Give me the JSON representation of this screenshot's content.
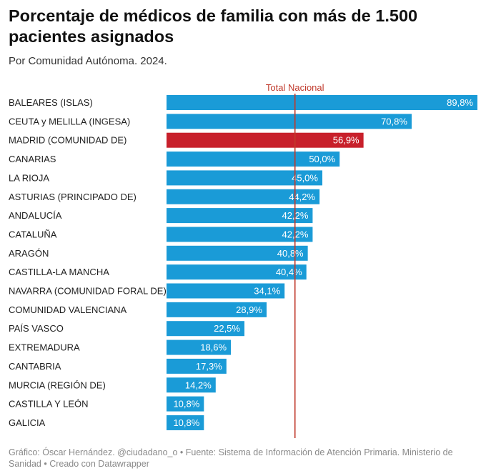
{
  "chart_data": {
    "type": "bar",
    "orientation": "horizontal",
    "title": "Porcentaje de médicos de familia con más de 1.500 pacientes asignados",
    "subtitle": "Por Comunidad Autónoma. 2024.",
    "categories": [
      "BALEARES (ISLAS)",
      "CEUTA y MELILLA (INGESA)",
      "MADRID (COMUNIDAD DE)",
      "CANARIAS",
      "LA RIOJA",
      "ASTURIAS (PRINCIPADO DE)",
      "ANDALUCÍA",
      "CATALUÑA",
      "ARAGÓN",
      "CASTILLA-LA MANCHA",
      "NAVARRA (COMUNIDAD FORAL DE)",
      "COMUNIDAD VALENCIANA",
      "PAÍS VASCO",
      "EXTREMADURA",
      "CANTABRIA",
      "MURCIA (REGIÓN DE)",
      "CASTILLA Y LEÓN",
      "GALICIA"
    ],
    "values": [
      89.8,
      70.8,
      56.9,
      50.0,
      45.0,
      44.2,
      42.2,
      42.2,
      40.8,
      40.4,
      34.1,
      28.9,
      22.5,
      18.6,
      17.3,
      14.2,
      10.8,
      10.8
    ],
    "value_labels": [
      "89,8%",
      "70,8%",
      "56,9%",
      "50,0%",
      "45,0%",
      "44,2%",
      "42,2%",
      "42,2%",
      "40,8%",
      "40,4%",
      "34,1%",
      "28,9%",
      "22,5%",
      "18,6%",
      "17,3%",
      "14,2%",
      "10,8%",
      "10,8%"
    ],
    "highlight_index": 2,
    "reference_line": {
      "label": "Total Nacional",
      "value": 37.1
    },
    "xlim": [
      0,
      89.8
    ],
    "grid": false,
    "colors": {
      "bar": "#1a9bd7",
      "highlight": "#c8202b",
      "reference": "#c0392b"
    }
  },
  "footer": {
    "text": "Gráfico: Óscar Hernández. @ciudadano_o • Fuente: Sistema de Información de Atención Primaria. Ministerio de Sanidad • Creado con Datawrapper"
  }
}
